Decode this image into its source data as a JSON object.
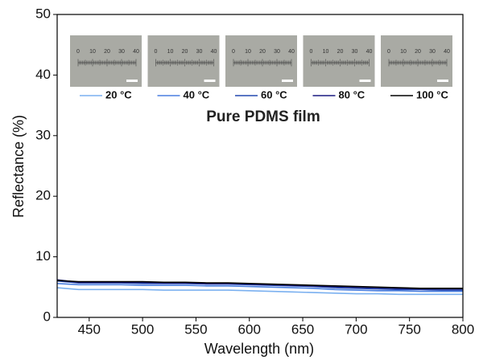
{
  "chart_data": {
    "type": "line",
    "x_label": "Wavelength (nm)",
    "y_label": "Reflectance (%)",
    "annotation": "Pure PDMS film",
    "ruler_labels": [
      "0",
      "10",
      "20",
      "30",
      "40"
    ],
    "x": [
      420,
      440,
      460,
      480,
      500,
      520,
      540,
      560,
      580,
      600,
      620,
      640,
      660,
      680,
      700,
      720,
      740,
      760,
      780,
      800
    ],
    "series": [
      {
        "name": "20 °C",
        "color": "#7ab0f0",
        "values": [
          4.9,
          4.6,
          4.6,
          4.6,
          4.6,
          4.5,
          4.5,
          4.5,
          4.5,
          4.4,
          4.3,
          4.2,
          4.1,
          4.0,
          3.9,
          3.9,
          3.8,
          3.8,
          3.8,
          3.8
        ]
      },
      {
        "name": "40 °C",
        "color": "#4a7fe0",
        "values": [
          5.6,
          5.4,
          5.4,
          5.4,
          5.3,
          5.3,
          5.3,
          5.2,
          5.2,
          5.1,
          5.0,
          4.9,
          4.8,
          4.6,
          4.5,
          4.4,
          4.4,
          4.3,
          4.3,
          4.3
        ]
      },
      {
        "name": "60 °C",
        "color": "#2448b0",
        "values": [
          6.0,
          5.7,
          5.7,
          5.7,
          5.6,
          5.6,
          5.6,
          5.5,
          5.5,
          5.4,
          5.3,
          5.2,
          5.1,
          4.9,
          4.8,
          4.7,
          4.6,
          4.6,
          4.5,
          4.5
        ]
      },
      {
        "name": "80 °C",
        "color": "#1a1a80",
        "values": [
          6.2,
          5.8,
          5.8,
          5.8,
          5.8,
          5.7,
          5.7,
          5.6,
          5.6,
          5.5,
          5.4,
          5.3,
          5.2,
          5.1,
          5.0,
          4.9,
          4.8,
          4.7,
          4.7,
          4.7
        ]
      },
      {
        "name": "100 °C",
        "color": "#000000",
        "values": [
          6.1,
          5.9,
          5.9,
          5.9,
          5.9,
          5.8,
          5.8,
          5.7,
          5.7,
          5.6,
          5.5,
          5.4,
          5.3,
          5.2,
          5.1,
          5.0,
          4.9,
          4.8,
          4.8,
          4.8
        ]
      }
    ],
    "xlim": [
      420,
      800
    ],
    "ylim": [
      0,
      50
    ],
    "xticks": [
      450,
      500,
      550,
      600,
      650,
      700,
      750,
      800
    ],
    "yticks": [
      0,
      10,
      20,
      30,
      40,
      50
    ]
  }
}
